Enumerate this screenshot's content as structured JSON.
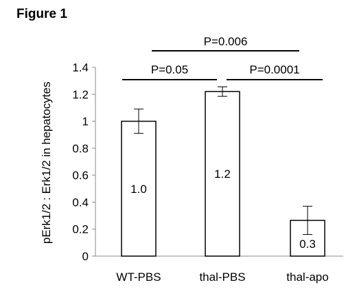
{
  "figure_label": "Figure 1",
  "chart_data": {
    "type": "bar",
    "categories": [
      "WT-PBS",
      "thal-PBS",
      "thal-apo"
    ],
    "values": [
      1.0,
      1.22,
      0.265
    ],
    "errors": [
      0.09,
      0.035,
      0.105
    ],
    "data_labels": [
      "1.0",
      "1.2",
      "0.3"
    ],
    "ylabel": "pErk1/2 : Erk1/2 in hepatocytes",
    "ylim": [
      0,
      1.4
    ],
    "yticks": [
      "0",
      "0.2",
      "0.4",
      "0.6",
      "0.8",
      "1",
      "1.2",
      "1.4"
    ],
    "grid": false,
    "legend": "none",
    "significance": [
      {
        "from": 0,
        "to": 1,
        "label": "P=0.05"
      },
      {
        "from": 1,
        "to": 2,
        "label": "P=0.0001"
      },
      {
        "from": 0,
        "to": 2,
        "label": "P=0.006"
      }
    ]
  }
}
